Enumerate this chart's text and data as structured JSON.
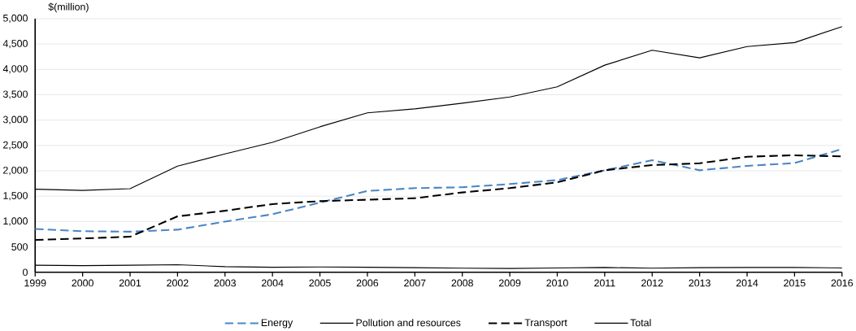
{
  "chart_data": {
    "type": "line",
    "ylabel": "$(million)",
    "categories": [
      "1999",
      "2000",
      "2001",
      "2002",
      "2003",
      "2004",
      "2005",
      "2006",
      "2007",
      "2008",
      "2009",
      "2010",
      "2011",
      "2012",
      "2013",
      "2014",
      "2015",
      "2016"
    ],
    "series": [
      {
        "name": "Energy",
        "color": "#4a86c5",
        "line_style": "dashed",
        "values": [
          856,
          810,
          800,
          840,
          1000,
          1144,
          1374,
          1603,
          1659,
          1676,
          1739,
          1818,
          2011,
          2210,
          2011,
          2097,
          2153,
          2430
        ]
      },
      {
        "name": "Pollution and resources",
        "color": "#000000",
        "line_style": "solid",
        "values": [
          140,
          130,
          140,
          150,
          110,
          100,
          105,
          100,
          90,
          80,
          75,
          85,
          95,
          80,
          90,
          95,
          95,
          85
        ]
      },
      {
        "name": "Transport",
        "color": "#000000",
        "line_style": "dashed",
        "values": [
          638,
          667,
          701,
          1103,
          1213,
          1345,
          1402,
          1431,
          1460,
          1574,
          1659,
          1773,
          2011,
          2114,
          2148,
          2278,
          2307,
          2284
        ]
      },
      {
        "name": "Total",
        "color": "#000000",
        "line_style": "solid",
        "values": [
          1638,
          1615,
          1649,
          2092,
          2333,
          2563,
          2868,
          3144,
          3222,
          3333,
          3456,
          3656,
          4083,
          4378,
          4228,
          4450,
          4528,
          4844
        ]
      }
    ],
    "ylim": [
      0,
      5000
    ],
    "yticks": [
      {
        "value": 0,
        "label": "0"
      },
      {
        "value": 500,
        "label": "500"
      },
      {
        "value": 1000,
        "label": "1,000"
      },
      {
        "value": 1500,
        "label": "1,500"
      },
      {
        "value": 2000,
        "label": "2,000"
      },
      {
        "value": 2500,
        "label": "2,500"
      },
      {
        "value": 3000,
        "label": "3,000"
      },
      {
        "value": 3500,
        "label": "3,500"
      },
      {
        "value": 4000,
        "label": "4,000"
      },
      {
        "value": 4500,
        "label": "4,500"
      },
      {
        "value": 5000,
        "label": "5,000"
      }
    ],
    "grid": "y",
    "legend": "bottom",
    "marker": "none"
  }
}
